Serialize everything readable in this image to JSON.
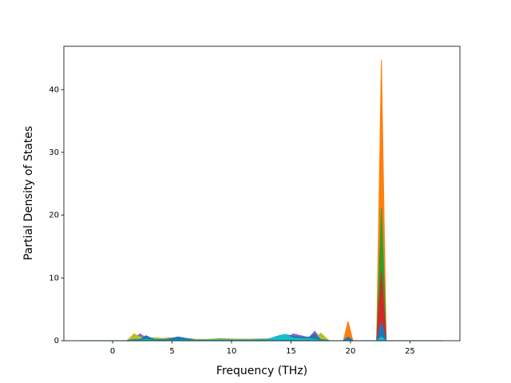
{
  "chart_data": {
    "type": "area",
    "x_label": "Frequency (THz)",
    "y_label": "Partial Density of States",
    "x": [
      -2.7,
      1.2,
      1.8,
      2.3,
      2.8,
      3.5,
      4.5,
      5.5,
      7,
      9,
      11,
      13,
      14,
      14.5,
      15.2,
      16.5,
      17,
      17.5,
      18.2,
      19.4,
      19.8,
      20.2,
      22.2,
      22.6,
      23.0,
      27.7
    ],
    "series": [
      {
        "color": "#ff7f0e",
        "values": [
          0,
          0,
          0.5,
          0.3,
          0.6,
          0.3,
          0.4,
          0.5,
          0.2,
          0.2,
          0.2,
          0.3,
          0.5,
          0.7,
          0.5,
          0.6,
          0.5,
          0.9,
          0,
          0,
          3.1,
          0,
          0,
          44.7,
          0,
          0
        ]
      },
      {
        "color": "#2ca02c",
        "values": [
          0,
          0,
          0.3,
          0.4,
          0.3,
          0.2,
          0.3,
          0.2,
          0.1,
          0.3,
          0.2,
          0.2,
          0.4,
          0.6,
          0.5,
          0.4,
          0.3,
          0.3,
          0,
          0,
          0.5,
          0,
          0,
          21.1,
          0,
          0
        ]
      },
      {
        "color": "#d62728",
        "values": [
          0,
          0,
          0.2,
          0.3,
          0.2,
          0.2,
          0.2,
          0.3,
          0.1,
          0.2,
          0.2,
          0.2,
          0.3,
          0.5,
          0.4,
          0.5,
          0.4,
          0.2,
          0,
          0,
          0.3,
          0,
          0,
          11,
          0,
          0
        ]
      },
      {
        "color": "#9467bd",
        "values": [
          0,
          0,
          0.4,
          1.1,
          0.5,
          0.3,
          0.3,
          0.2,
          0.1,
          0.1,
          0.1,
          0.2,
          0.3,
          0.4,
          1.1,
          0.5,
          1.5,
          0.3,
          0,
          0,
          0.2,
          0,
          0,
          1.5,
          0,
          0
        ]
      },
      {
        "color": "#bcbd22",
        "values": [
          0,
          0,
          1.1,
          0.6,
          0.4,
          0.5,
          0.3,
          0.3,
          0.2,
          0.2,
          0.2,
          0.2,
          0.3,
          0.4,
          0.6,
          0.4,
          0.3,
          1.2,
          0,
          0,
          0.1,
          0,
          0,
          0.8,
          0,
          0
        ]
      },
      {
        "color": "#1f77b4",
        "values": [
          0,
          0,
          0.2,
          0.2,
          0.8,
          0.2,
          0.2,
          0.6,
          0.1,
          0.1,
          0.1,
          0.2,
          0.8,
          1,
          0.7,
          0.5,
          1.1,
          0.2,
          0,
          0,
          0.6,
          0,
          0,
          3,
          0,
          0
        ]
      },
      {
        "color": "#17becf",
        "values": [
          0,
          0,
          0.1,
          0.1,
          0.2,
          0.1,
          0.1,
          0.1,
          0.1,
          0.1,
          0.1,
          0.2,
          0.7,
          1.0,
          0.4,
          0.3,
          0.2,
          0.1,
          0,
          0,
          0.1,
          0,
          0,
          0.6,
          0,
          0
        ]
      }
    ],
    "xlim": [
      -4.1,
      29.2
    ],
    "ylim": [
      0,
      46.9
    ],
    "xticks": [
      0,
      5,
      10,
      15,
      20,
      25
    ],
    "yticks": [
      0,
      10,
      20,
      30,
      40
    ]
  }
}
